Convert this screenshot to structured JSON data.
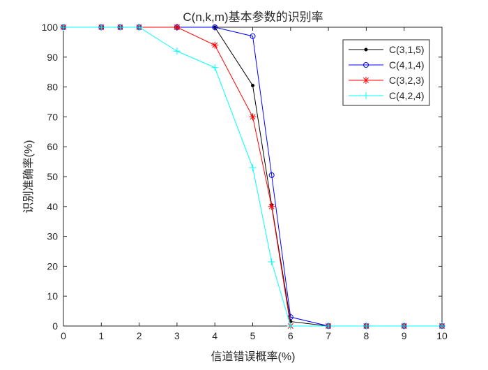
{
  "chart_data": {
    "type": "line",
    "title": "C(n,k,m)基本参数的识别率",
    "xlabel": "信道错误概率(%)",
    "ylabel": "识别准确率(%)",
    "xlim": [
      0,
      10
    ],
    "ylim": [
      0,
      100
    ],
    "xticks": [
      0,
      1,
      2,
      3,
      4,
      5,
      6,
      7,
      8,
      9,
      10
    ],
    "yticks": [
      0,
      10,
      20,
      30,
      40,
      50,
      60,
      70,
      80,
      90,
      100
    ],
    "grid": false,
    "legend_position": "top-right",
    "series": [
      {
        "name": "C(3,1,5)",
        "color": "#000000",
        "marker": "dot",
        "x": [
          0,
          1,
          1.5,
          2,
          3,
          4,
          5,
          5.5,
          6,
          7,
          8,
          9,
          10
        ],
        "y": [
          100,
          100,
          100,
          100,
          100,
          100,
          80.5,
          40.5,
          1.5,
          0,
          0,
          0,
          0
        ]
      },
      {
        "name": "C(4,1,4)",
        "color": "#0000ff",
        "marker": "circle",
        "x": [
          0,
          1,
          1.5,
          2,
          3,
          4,
          5,
          5.5,
          6,
          7,
          8,
          9,
          10
        ],
        "y": [
          100,
          100,
          100,
          100,
          100,
          100,
          97,
          50.5,
          3,
          0,
          0,
          0,
          0
        ]
      },
      {
        "name": "C(3,2,3)",
        "color": "#ff0000",
        "marker": "asterisk",
        "x": [
          0,
          1,
          1.5,
          2,
          3,
          4,
          5,
          5.5,
          6,
          7,
          8,
          9,
          10
        ],
        "y": [
          100,
          100,
          100,
          100,
          100,
          94,
          70,
          40,
          0,
          0,
          0,
          0,
          0
        ]
      },
      {
        "name": "C(4,2,4)",
        "color": "#00ffff",
        "marker": "plus",
        "x": [
          0,
          1,
          1.5,
          2,
          3,
          4,
          5,
          5.5,
          6,
          7,
          8,
          9,
          10
        ],
        "y": [
          100,
          100,
          100,
          100,
          92,
          86.5,
          53,
          21.5,
          0,
          0,
          0,
          0,
          0
        ]
      }
    ]
  }
}
